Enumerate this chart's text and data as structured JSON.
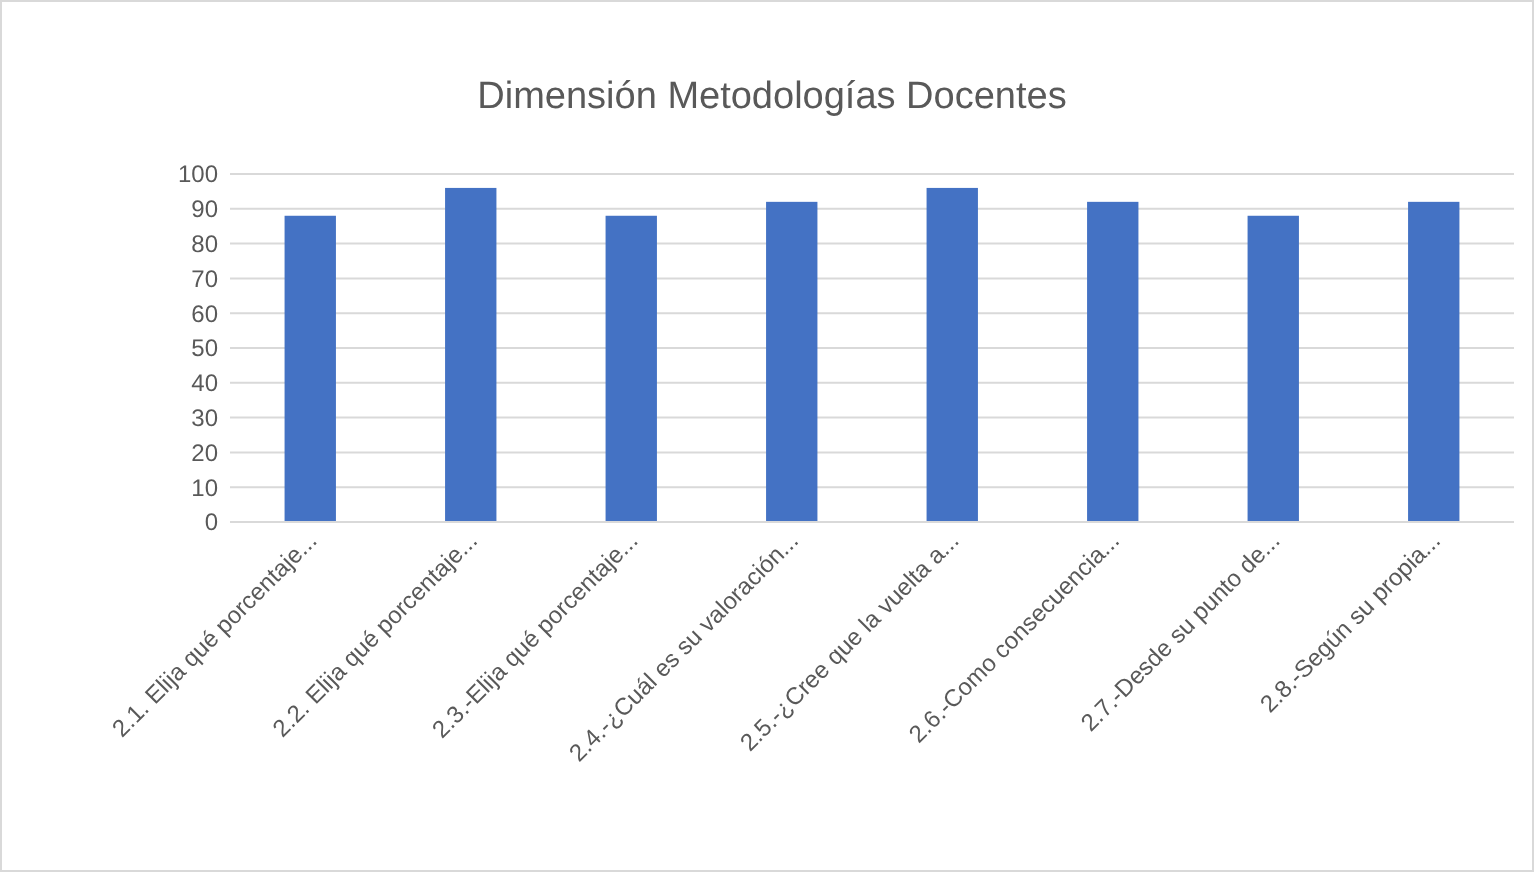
{
  "chart_data": {
    "type": "bar",
    "title": "Dimensión Metodologías Docentes",
    "categories": [
      "2.1. Elija qué porcentaje...",
      "2.2. Elija qué porcentaje...",
      "2.3.-Elija qué porcentaje...",
      "2.4.-¿Cuál es su valoración...",
      "2.5.-¿Cree que la vuelta a...",
      "2.6.-Como consecuencia...",
      "2.7.-Desde su punto de...",
      "2.8.-Según su propia..."
    ],
    "values": [
      88,
      96,
      88,
      92,
      96,
      92,
      88,
      92
    ],
    "color": "#4472c4",
    "ylim": [
      0,
      100
    ],
    "yticks": [
      0,
      10,
      20,
      30,
      40,
      50,
      60,
      70,
      80,
      90,
      100
    ],
    "grid": "y"
  }
}
